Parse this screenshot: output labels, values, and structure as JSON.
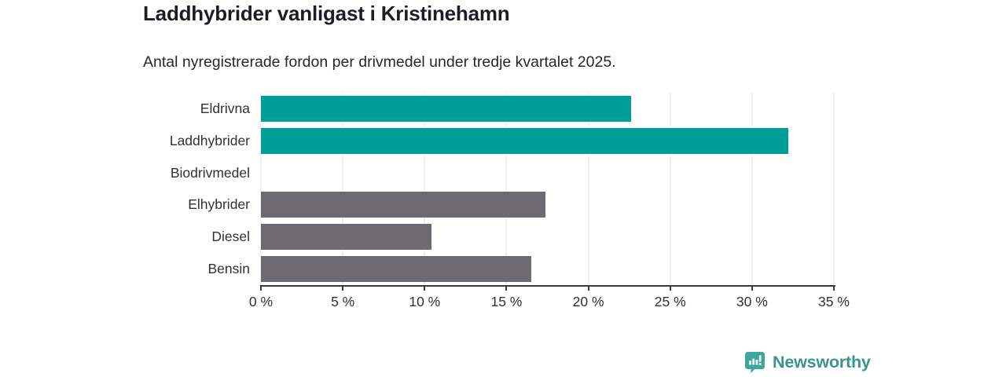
{
  "header": {
    "title": "Laddhybrider vanligast i Kristinehamn",
    "subtitle": "Antal nyregistrerade fordon per drivmedel under tredje kvartalet 2025."
  },
  "chart_data": {
    "type": "bar",
    "orientation": "horizontal",
    "title": "Laddhybrider vanligast i Kristinehamn",
    "subtitle": "Antal nyregistrerade fordon per drivmedel under tredje kvartalet 2025.",
    "categories": [
      "Eldrivna",
      "Laddhybrider",
      "Biodrivmedel",
      "Elhybrider",
      "Diesel",
      "Bensin"
    ],
    "values": [
      22.6,
      32.2,
      0,
      17.4,
      10.4,
      16.5
    ],
    "unit": "%",
    "bar_colors": [
      "#009e97",
      "#009e97",
      "#009e97",
      "#6d6a71",
      "#6d6a71",
      "#6d6a71"
    ],
    "x_ticks": [
      "0 %",
      "5 %",
      "10 %",
      "15 %",
      "20 %",
      "25 %",
      "30 %",
      "35 %"
    ],
    "x_tick_values": [
      0,
      5,
      10,
      15,
      20,
      25,
      30,
      35
    ],
    "xlim": [
      0,
      35
    ],
    "grid": true,
    "legend": "none",
    "xlabel": "",
    "ylabel": ""
  },
  "footer": {
    "brand": "Newsworthy",
    "brand_color": "#3a948e",
    "icon": "newsworthy-logo"
  },
  "colors": {
    "accent_teal": "#009e97",
    "bar_gray": "#6d6a71",
    "gridline": "#e3e3e3",
    "axis": "#3a3a3a",
    "title_text": "#1c1c26"
  }
}
